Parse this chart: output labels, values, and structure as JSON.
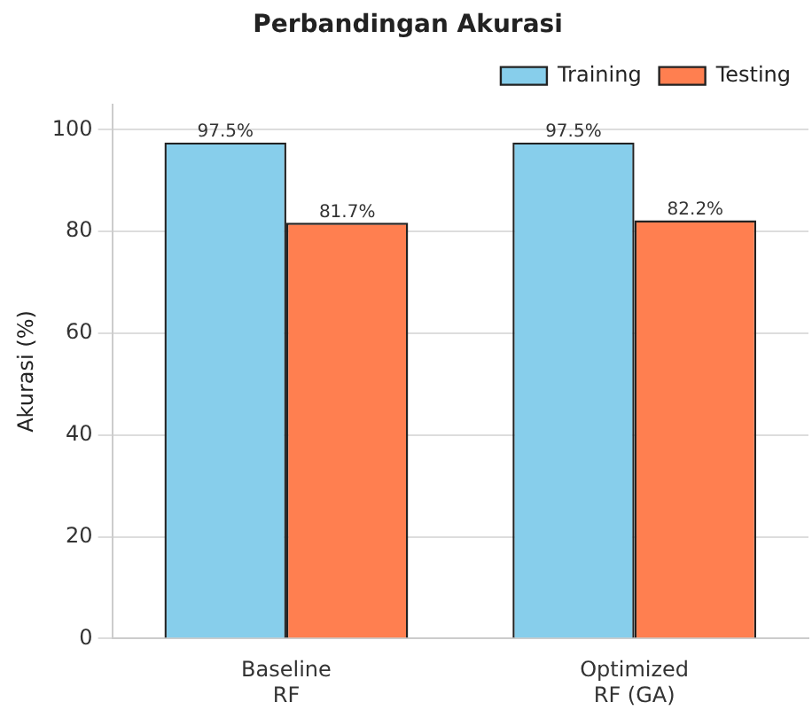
{
  "chart_data": {
    "type": "bar",
    "title": "Perbandingan Akurasi",
    "ylabel": "Akurasi (%)",
    "categories": [
      "Baseline\nRF",
      "Optimized\nRF (GA)"
    ],
    "series": [
      {
        "name": "Training",
        "color": "#87ceeb",
        "values": [
          97.5,
          97.5
        ],
        "value_labels": [
          "97.5%",
          "97.5%"
        ]
      },
      {
        "name": "Testing",
        "color": "#ff7f50",
        "values": [
          81.7,
          82.2
        ],
        "value_labels": [
          "81.7%",
          "82.2%"
        ]
      }
    ],
    "ylim": [
      0,
      105
    ],
    "yticks": [
      0,
      20,
      40,
      60,
      80,
      100
    ],
    "grid": "y",
    "legend": "top right"
  }
}
